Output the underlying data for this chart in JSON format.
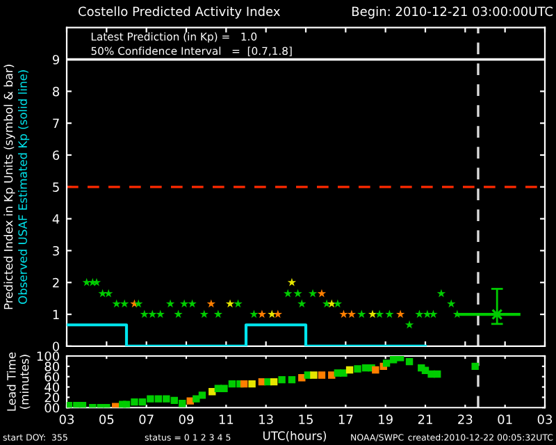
{
  "chart_data": [
    {
      "type": "scatter",
      "title": "Costello Predicted Activity Index",
      "subtitle": "Begin: 2010-12-21 03:00:00UTC",
      "ylabel": "Predicted Index in Kp Units (symbol & bar)",
      "xlim": [
        "2010-12-21T03:00",
        "2010-12-22T03:00"
      ],
      "xticks": [
        "2010-12-21T03:00",
        "2010-12-21T05:00",
        "2010-12-21T07:00",
        "2010-12-21T09:00",
        "2010-12-21T11:00",
        "2010-12-21T13:00",
        "2010-12-21T15:00",
        "2010-12-21T17:00",
        "2010-12-21T19:00",
        "2010-12-21T21:00",
        "2010-12-21T23:00",
        "2010-12-22T01:00",
        "2010-12-22T03:00"
      ],
      "ylim": [
        0,
        10
      ],
      "yticks": [
        0,
        1,
        2,
        3,
        4,
        5,
        6,
        7,
        8,
        9
      ],
      "tick_labels": "y",
      "grid": false,
      "legend": false,
      "annotations": [
        "Latest Prediction (in Kp) =   1.0",
        "50% Confidence Interval   =  [0.7,1.8]"
      ],
      "ref_lines": [
        {
          "axis": "y",
          "value": 5,
          "color": "#ff2a00",
          "line_style": "dashed"
        },
        {
          "axis": "y",
          "value": 9,
          "color": "#ffffff",
          "line_style": "solid"
        },
        {
          "axis": "x",
          "value": "2010-12-21T23:39",
          "color": "#dddddd",
          "line_style": "dashed"
        }
      ],
      "series": [
        {
          "name": "Observed USAF Estimated Kp (solid line)",
          "type": "line",
          "color": "#00e5ee",
          "x": [
            "2010-12-21T03:00",
            "2010-12-21T06:00",
            "2010-12-21T06:00",
            "2010-12-21T12:00",
            "2010-12-21T12:00",
            "2010-12-21T15:00",
            "2010-12-21T15:00",
            "2010-12-21T21:00"
          ],
          "values": [
            0.67,
            0.67,
            0,
            0,
            0.67,
            0.67,
            0,
            0
          ]
        },
        {
          "color": "#00cc00",
          "marker": "star",
          "x": [
            "2010-12-21T04:00",
            "2010-12-21T04:18",
            "2010-12-21T04:30",
            "2010-12-21T04:48",
            "2010-12-21T05:06",
            "2010-12-21T05:30",
            "2010-12-21T05:54",
            "2010-12-21T06:24",
            "2010-12-21T06:36",
            "2010-12-21T06:54",
            "2010-12-21T07:18",
            "2010-12-21T07:42",
            "2010-12-21T08:12",
            "2010-12-21T08:36",
            "2010-12-21T08:54",
            "2010-12-21T09:18",
            "2010-12-21T09:54",
            "2010-12-21T10:15",
            "2010-12-21T10:36",
            "2010-12-21T11:12",
            "2010-12-21T11:36",
            "2010-12-21T12:24",
            "2010-12-21T12:48",
            "2010-12-21T13:18",
            "2010-12-21T13:36",
            "2010-12-21T14:06",
            "2010-12-21T14:18",
            "2010-12-21T14:36",
            "2010-12-21T14:48",
            "2010-12-21T15:21",
            "2010-12-21T15:48",
            "2010-12-21T16:03",
            "2010-12-21T16:18",
            "2010-12-21T16:36",
            "2010-12-21T16:54",
            "2010-12-21T17:18",
            "2010-12-21T17:48",
            "2010-12-21T18:21",
            "2010-12-21T18:42",
            "2010-12-21T19:12",
            "2010-12-21T19:45",
            "2010-12-21T20:12",
            "2010-12-21T20:42",
            "2010-12-21T21:06",
            "2010-12-21T21:24",
            "2010-12-21T21:48",
            "2010-12-21T22:18",
            "2010-12-21T22:36"
          ],
          "values": [
            2.0,
            2.0,
            2.0,
            1.65,
            1.65,
            1.33,
            1.33,
            1.33,
            1.33,
            1.0,
            1.0,
            1.0,
            1.33,
            1.0,
            1.33,
            1.33,
            1.0,
            1.33,
            1.0,
            1.33,
            1.33,
            1.0,
            1.0,
            1.0,
            1.0,
            1.65,
            2.0,
            1.65,
            1.33,
            1.65,
            1.65,
            1.33,
            1.33,
            1.33,
            1.0,
            1.0,
            1.0,
            1.0,
            1.0,
            1.0,
            1.0,
            0.67,
            1.0,
            1.0,
            1.0,
            1.65,
            1.33,
            1.0
          ],
          "colors": [
            "#00cc00",
            "#00cc00",
            "#00cc00",
            "#00cc00",
            "#00cc00",
            "#00cc00",
            "#00cc00",
            "#ff7f00",
            "#00cc00",
            "#00cc00",
            "#00cc00",
            "#00cc00",
            "#00cc00",
            "#00cc00",
            "#00cc00",
            "#00cc00",
            "#00cc00",
            "#ff7f00",
            "#00cc00",
            "#e6e600",
            "#00cc00",
            "#00cc00",
            "#ff7f00",
            "#e6e600",
            "#ff7f00",
            "#00cc00",
            "#e6e600",
            "#00cc00",
            "#00cc00",
            "#00cc00",
            "#ff7f00",
            "#00cc00",
            "#e6e600",
            "#00cc00",
            "#ff7f00",
            "#ff7f00",
            "#00cc00",
            "#e6e600",
            "#00cc00",
            "#00cc00",
            "#ff7f00",
            "#00cc00",
            "#00cc00",
            "#00cc00",
            "#00cc00",
            "#00cc00",
            "#00cc00",
            "#00cc00"
          ]
        },
        {
          "type": "line",
          "color": "#00cc00",
          "x": [
            "2010-12-21T22:36",
            "2010-12-22T01:42"
          ],
          "values": [
            1.0,
            1.0
          ]
        },
        {
          "color": "#00cc00",
          "marker": "cross",
          "x": [
            "2010-12-22T00:36"
          ],
          "values": [
            1.0
          ],
          "errors": [
            [
              0.7,
              1.8
            ]
          ]
        }
      ]
    },
    {
      "type": "scatter",
      "xlabel": "UTC(hours)",
      "ylabel": "Lead Time\n(minutes)",
      "xlim": [
        "2010-12-21T03:00",
        "2010-12-22T03:00"
      ],
      "xticks": [
        {
          "value": "2010-12-21T03:00",
          "label": "03"
        },
        {
          "value": "2010-12-21T05:00",
          "label": "05"
        },
        {
          "value": "2010-12-21T07:00",
          "label": "07"
        },
        {
          "value": "2010-12-21T09:00",
          "label": "09"
        },
        {
          "value": "2010-12-21T11:00",
          "label": "11"
        },
        {
          "value": "2010-12-21T13:00",
          "label": "13"
        },
        {
          "value": "2010-12-21T15:00",
          "label": "15"
        },
        {
          "value": "2010-12-21T17:00",
          "label": "17"
        },
        {
          "value": "2010-12-21T19:00",
          "label": "19"
        },
        {
          "value": "2010-12-21T21:00",
          "label": "21"
        },
        {
          "value": "2010-12-21T23:00",
          "label": "23"
        },
        {
          "value": "2010-12-22T01:00",
          "label": "01"
        },
        {
          "value": "2010-12-22T03:00",
          "label": "03"
        }
      ],
      "ylim": [
        0,
        100
      ],
      "yticks": [
        {
          "value": 0,
          "label": "00"
        },
        20,
        40,
        60,
        80,
        100
      ],
      "marker": "square",
      "grid": false,
      "legend": false,
      "annotations": [
        "start DOY:  355",
        "status = 0 1 2 3 4 5",
        "NOAA/SWPC",
        "created:2010-12-22 00:05:32UTC"
      ],
      "ref_lines": [
        {
          "axis": "x",
          "value": "2010-12-21T23:39",
          "color": "#dddddd",
          "line_style": "dashed"
        }
      ],
      "series": [
        {
          "color": "#00cc00",
          "x": [
            "2010-12-21T03:06",
            "2010-12-21T03:30",
            "2010-12-21T03:48",
            "2010-12-21T04:18",
            "2010-12-21T04:42",
            "2010-12-21T05:00",
            "2010-12-21T05:27",
            "2010-12-21T05:48",
            "2010-12-21T06:00",
            "2010-12-21T06:24",
            "2010-12-21T06:48",
            "2010-12-21T07:12",
            "2010-12-21T07:36",
            "2010-12-21T08:00",
            "2010-12-21T08:24",
            "2010-12-21T08:48",
            "2010-12-21T09:12",
            "2010-12-21T09:30",
            "2010-12-21T09:48",
            "2010-12-21T10:18",
            "2010-12-21T10:36",
            "2010-12-21T10:54",
            "2010-12-21T11:18",
            "2010-12-21T11:42",
            "2010-12-21T11:54",
            "2010-12-21T12:18",
            "2010-12-21T12:48",
            "2010-12-21T13:06",
            "2010-12-21T13:24",
            "2010-12-21T13:48",
            "2010-12-21T14:18",
            "2010-12-21T14:48",
            "2010-12-21T15:06",
            "2010-12-21T15:24",
            "2010-12-21T15:48",
            "2010-12-21T16:18",
            "2010-12-21T16:36",
            "2010-12-21T16:54",
            "2010-12-21T17:12",
            "2010-12-21T17:36",
            "2010-12-21T18:00",
            "2010-12-21T18:18",
            "2010-12-21T18:30",
            "2010-12-21T18:54",
            "2010-12-21T19:03",
            "2010-12-21T19:24",
            "2010-12-21T19:45",
            "2010-12-21T20:12",
            "2010-12-21T20:48",
            "2010-12-21T21:00",
            "2010-12-21T21:18",
            "2010-12-21T21:36",
            "2010-12-21T23:30"
          ],
          "values": [
            4,
            4,
            4,
            0,
            0,
            0,
            2,
            6,
            6,
            11,
            11,
            17,
            17,
            17,
            14,
            8,
            13,
            17,
            24,
            31,
            37,
            37,
            46,
            46,
            46,
            46,
            50,
            50,
            50,
            54,
            54,
            58,
            63,
            63,
            63,
            63,
            67,
            67,
            73,
            75,
            77,
            77,
            73,
            80,
            86,
            93,
            97,
            89,
            77,
            72,
            65,
            65,
            80
          ],
          "colors": [
            "#00cc00",
            "#00cc00",
            "#00cc00",
            "#00cc00",
            "#00cc00",
            "#00cc00",
            "#ff7f00",
            "#00cc00",
            "#00cc00",
            "#00cc00",
            "#00cc00",
            "#00cc00",
            "#00cc00",
            "#00cc00",
            "#00cc00",
            "#00cc00",
            "#ff7f00",
            "#00cc00",
            "#00cc00",
            "#e6e600",
            "#00cc00",
            "#00cc00",
            "#00cc00",
            "#00cc00",
            "#ff7f00",
            "#e6e600",
            "#ff7f00",
            "#00cc00",
            "#e6e600",
            "#00cc00",
            "#00cc00",
            "#ff7f00",
            "#00cc00",
            "#e6e600",
            "#ff7f00",
            "#ff7f00",
            "#00cc00",
            "#00cc00",
            "#e6e600",
            "#00cc00",
            "#00cc00",
            "#00cc00",
            "#ff7f00",
            "#ff7f00",
            "#00cc00",
            "#00cc00",
            "#00cc00",
            "#00cc00",
            "#00cc00",
            "#00cc00",
            "#00cc00",
            "#00cc00",
            "#00cc00"
          ]
        }
      ]
    }
  ]
}
